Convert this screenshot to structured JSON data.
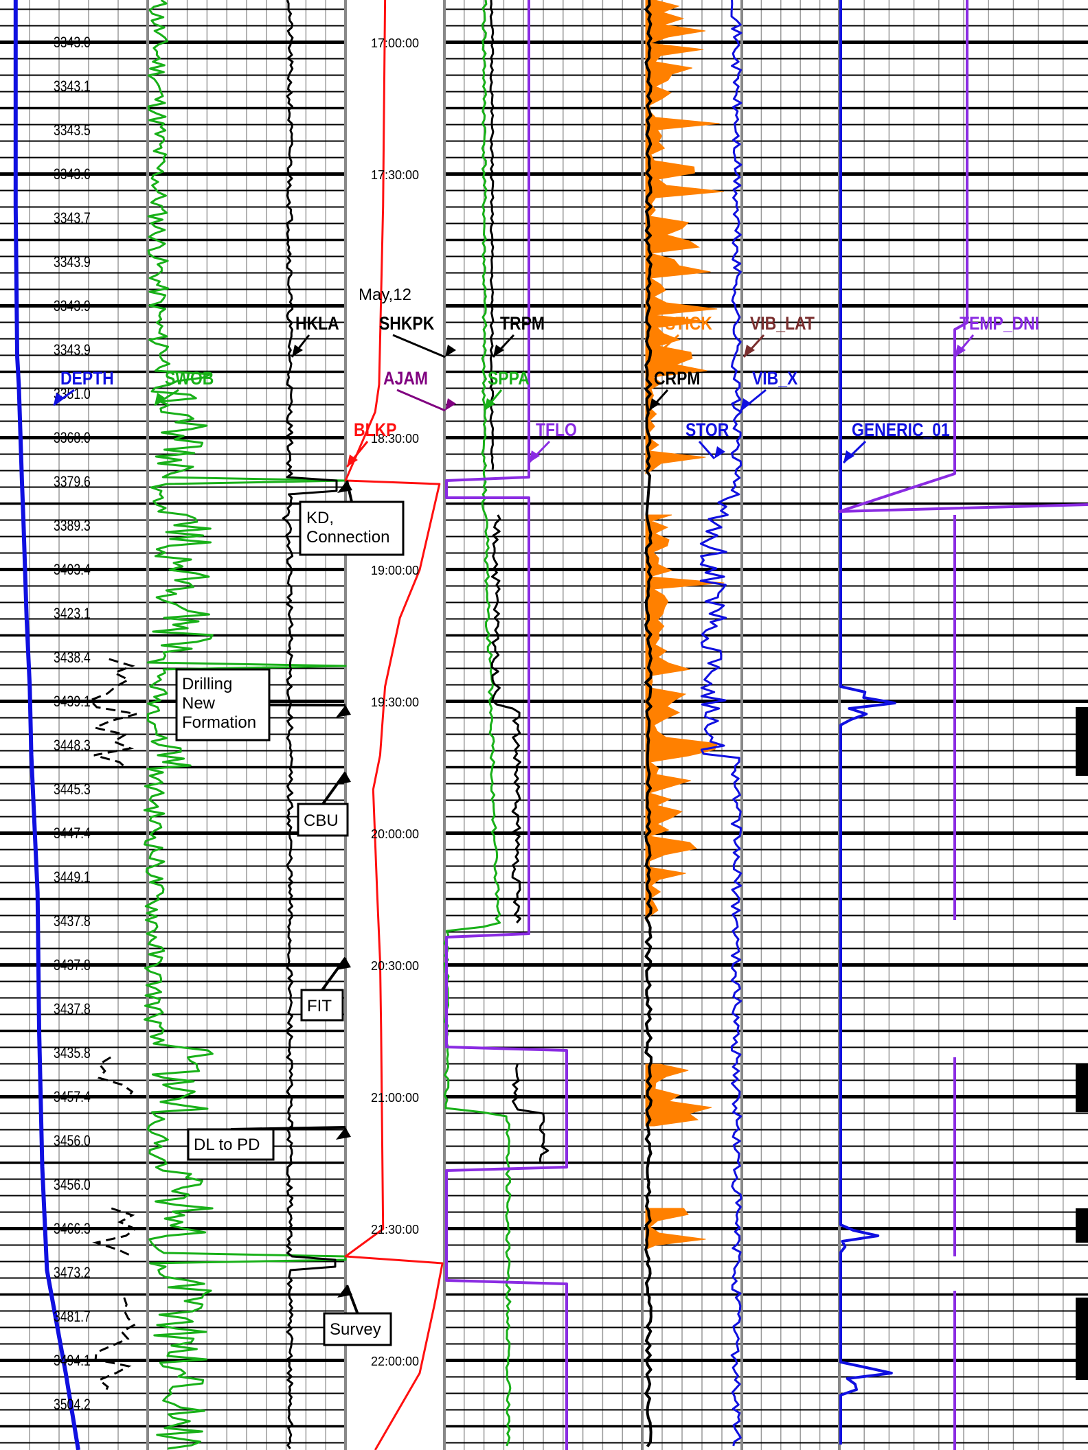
{
  "chart_data": {
    "type": "line",
    "title": "",
    "date_label": "May,12",
    "time_ticks": [
      "17:00:00",
      "17:30:00",
      "18:30:00",
      "19:00:00",
      "19:30:00",
      "20:00:00",
      "20:30:00",
      "21:00:00",
      "21:30:00",
      "22:00:00"
    ],
    "depth_labels": [
      "3343.0",
      "3343.1",
      "3343.5",
      "3343.6",
      "3343.7",
      "3343.9",
      "3343.9",
      "3343.9",
      "3351.0",
      "3368.0",
      "3379.6",
      "3389.3",
      "3403.4",
      "3423.1",
      "3438.4",
      "3439.1",
      "3448.3",
      "3445.3",
      "3447.4",
      "3449.1",
      "3437.8",
      "3437.8",
      "3437.8",
      "3435.8",
      "3457.4",
      "3456.0",
      "3456.0",
      "3466.3",
      "3473.2",
      "3481.7",
      "3494.1",
      "3504.2"
    ],
    "mnemonics": [
      {
        "name": "DEPTH",
        "color": "#1010e0"
      },
      {
        "name": "SWOB",
        "color": "#18b018"
      },
      {
        "name": "HKLA",
        "color": "#000000"
      },
      {
        "name": "SHKPK",
        "color": "#000000"
      },
      {
        "name": "AJAM",
        "color": "#800080"
      },
      {
        "name": "BLKP",
        "color": "#ff1010"
      },
      {
        "name": "TRPM",
        "color": "#000000"
      },
      {
        "name": "SPPA",
        "color": "#18b018"
      },
      {
        "name": "TFLO",
        "color": "#8a2be2"
      },
      {
        "name": "STICK",
        "color": "#ff8000"
      },
      {
        "name": "CRPM",
        "color": "#000000"
      },
      {
        "name": "STOR",
        "color": "#1010e0"
      },
      {
        "name": "VIB_LAT",
        "color": "#7a2e2e"
      },
      {
        "name": "VIB_X",
        "color": "#1010e0"
      },
      {
        "name": "GENERIC_01",
        "color": "#1010e0"
      },
      {
        "name": "TEMP_DNI",
        "color": "#8a2be2"
      }
    ],
    "annotations": [
      "KD,\nConnection",
      "Drilling\nNew\nFormation",
      "CBU",
      "FIT",
      "DL to PD",
      "Survey"
    ],
    "series": [
      {
        "name": "DEPTH",
        "track": 1,
        "points": [
          [
            0,
            0.1
          ],
          [
            300,
            0.1
          ],
          [
            520,
            0.11
          ],
          [
            560,
            0.12
          ],
          [
            700,
            0.14
          ],
          [
            760,
            0.15
          ],
          [
            900,
            0.17
          ],
          [
            1000,
            0.19
          ],
          [
            1100,
            0.2
          ],
          [
            1300,
            0.24
          ],
          [
            1500,
            0.25
          ],
          [
            1700,
            0.27
          ],
          [
            1850,
            0.3
          ],
          [
            2000,
            0.42
          ],
          [
            2112,
            0.5
          ]
        ]
      },
      {
        "name": "BLKP",
        "track": 4,
        "points": [
          [
            0,
            0.4
          ],
          [
            300,
            0.38
          ],
          [
            560,
            0.34
          ],
          [
            600,
            0.3
          ],
          [
            700,
            0.0
          ],
          [
            705,
            0.95
          ],
          [
            830,
            0.75
          ],
          [
            900,
            0.55
          ],
          [
            1000,
            0.4
          ],
          [
            1100,
            0.35
          ],
          [
            1150,
            0.28
          ],
          [
            1300,
            0.32
          ],
          [
            1400,
            0.35
          ],
          [
            1500,
            0.36
          ],
          [
            1790,
            0.38
          ],
          [
            1830,
            0.0
          ],
          [
            1840,
            0.98
          ],
          [
            1900,
            0.9
          ],
          [
            2000,
            0.75
          ],
          [
            2112,
            0.3
          ]
        ]
      }
    ]
  }
}
